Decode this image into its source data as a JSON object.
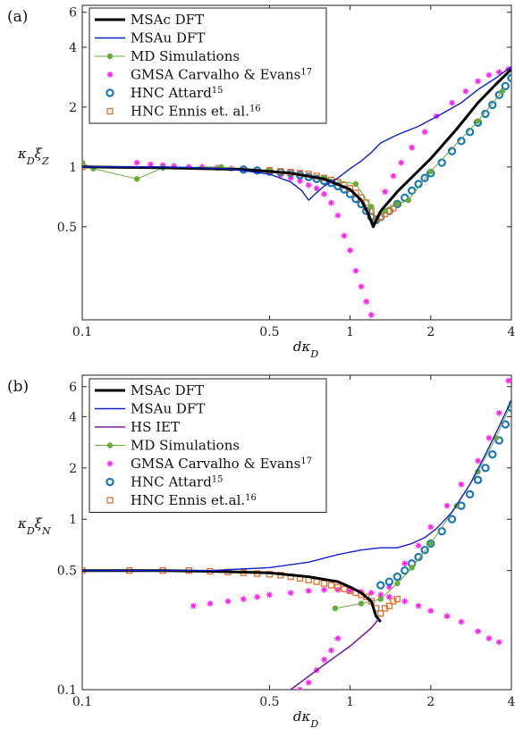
{
  "chart_data": [
    {
      "panel": "(a)",
      "type": "line",
      "xlabel": "dκ_D",
      "ylabel": "κ_D ξ_Z",
      "xscale": "log",
      "yscale": "log",
      "xlim": [
        0.1,
        4
      ],
      "ylim": [
        0.17,
        6.5
      ],
      "xticks": [
        0.1,
        0.5,
        1,
        2,
        4
      ],
      "yticks": [
        0.5,
        1,
        2,
        4,
        6
      ],
      "legend_position": "top-left",
      "series": [
        {
          "name": "MSAc DFT",
          "style": "line",
          "color": "#000000",
          "width": 3,
          "x": [
            0.1,
            0.2,
            0.4,
            0.6,
            0.8,
            1.0,
            1.1,
            1.17,
            1.2,
            1.22,
            1.3,
            1.5,
            2.0,
            2.5,
            3.0,
            3.5,
            4.0
          ],
          "y": [
            1.0,
            0.99,
            0.97,
            0.93,
            0.87,
            0.77,
            0.68,
            0.58,
            0.53,
            0.5,
            0.6,
            0.75,
            1.1,
            1.55,
            2.1,
            2.6,
            3.1
          ]
        },
        {
          "name": "MSAu DFT",
          "style": "line",
          "color": "#1020c8",
          "width": 1.4,
          "x": [
            0.1,
            0.2,
            0.35,
            0.5,
            0.6,
            0.66,
            0.7,
            0.74,
            0.8,
            0.9,
            1.0,
            1.1,
            1.2,
            1.3,
            1.5,
            1.8,
            2.2,
            2.6,
            3.0,
            3.5,
            4.0
          ],
          "y": [
            1.0,
            1.0,
            0.98,
            0.92,
            0.84,
            0.76,
            0.68,
            0.73,
            0.8,
            0.88,
            0.98,
            1.07,
            1.18,
            1.32,
            1.45,
            1.6,
            1.85,
            2.1,
            2.45,
            2.8,
            3.2
          ]
        },
        {
          "name": "MD Simulations",
          "style": "line-marker",
          "color": "#6aaa3a",
          "marker": "dot",
          "x": [
            0.1,
            0.11,
            0.16,
            0.2,
            0.33,
            0.5,
            0.8,
            1.05,
            1.2,
            1.25,
            1.35,
            1.5,
            1.65,
            2.0,
            3.0,
            3.7
          ],
          "y": [
            1.05,
            0.98,
            0.87,
            0.99,
            1.0,
            0.96,
            0.88,
            0.82,
            0.63,
            0.54,
            0.6,
            0.65,
            0.68,
            0.95,
            1.7,
            2.4
          ]
        },
        {
          "name": "GMSA Carvalho & Evans¹⁷",
          "style": "marker",
          "color": "#ff22ee",
          "marker": "asterisk",
          "x": [
            0.16,
            0.18,
            0.2,
            0.22,
            0.25,
            0.28,
            0.32,
            0.36,
            0.4,
            0.45,
            0.5,
            0.55,
            0.6,
            0.65,
            0.7,
            0.75,
            0.8,
            0.85,
            0.9,
            0.95,
            1.0,
            1.05,
            1.1,
            1.15,
            1.2,
            1.35,
            1.45,
            1.55,
            1.7,
            1.9,
            2.1,
            2.4,
            2.7,
            3.0,
            3.3,
            3.6,
            3.9
          ],
          "y": [
            1.05,
            1.03,
            1.02,
            1.01,
            1.0,
            1.0,
            0.99,
            0.98,
            0.97,
            0.95,
            0.93,
            0.91,
            0.88,
            0.85,
            0.81,
            0.78,
            0.73,
            0.66,
            0.57,
            0.45,
            0.38,
            0.3,
            0.25,
            0.21,
            0.18,
            0.75,
            0.9,
            1.05,
            1.25,
            1.5,
            1.8,
            2.1,
            2.4,
            2.7,
            2.9,
            3.0,
            3.1
          ]
        },
        {
          "name": "HNC Attard¹⁵",
          "style": "marker",
          "color": "#1a78b4",
          "marker": "circle",
          "x": [
            0.4,
            0.45,
            0.5,
            0.55,
            0.6,
            0.65,
            0.7,
            0.75,
            0.8,
            0.85,
            0.9,
            0.95,
            1.0,
            1.05,
            1.1,
            1.15,
            1.2,
            1.25,
            1.3,
            1.4,
            1.5,
            1.6,
            1.7,
            1.8,
            1.9,
            2.0,
            2.2,
            2.4,
            2.6,
            2.8,
            3.0,
            3.2,
            3.4,
            3.6,
            3.8,
            4.0
          ],
          "y": [
            0.97,
            0.96,
            0.95,
            0.94,
            0.93,
            0.91,
            0.89,
            0.87,
            0.85,
            0.83,
            0.8,
            0.77,
            0.73,
            0.69,
            0.65,
            0.6,
            0.56,
            0.54,
            0.56,
            0.6,
            0.65,
            0.7,
            0.76,
            0.82,
            0.88,
            0.93,
            1.05,
            1.2,
            1.35,
            1.5,
            1.67,
            1.85,
            2.05,
            2.3,
            2.55,
            2.8
          ]
        },
        {
          "name": "HNC Ennis et. al.¹⁶",
          "style": "marker",
          "color": "#e07030",
          "marker": "square",
          "x": [
            0.1,
            0.5,
            0.55,
            0.6,
            0.65,
            0.7,
            0.75,
            0.8,
            0.85,
            0.9,
            0.95,
            1.0,
            1.05,
            1.1,
            1.15,
            1.2,
            1.25,
            1.3,
            1.35,
            1.4,
            1.45
          ],
          "y": [
            1.0,
            0.96,
            0.95,
            0.94,
            0.93,
            0.92,
            0.9,
            0.88,
            0.86,
            0.84,
            0.81,
            0.78,
            0.74,
            0.7,
            0.66,
            0.6,
            0.55,
            0.56,
            0.58,
            0.6,
            0.62
          ]
        }
      ]
    },
    {
      "panel": "(b)",
      "type": "line",
      "xlabel": "dκ_D",
      "ylabel": "κ_D ξ_N",
      "xscale": "log",
      "yscale": "log",
      "xlim": [
        0.1,
        4
      ],
      "ylim": [
        0.1,
        7
      ],
      "xticks": [
        0.1,
        0.5,
        1,
        2,
        4
      ],
      "yticks": [
        0.1,
        0.5,
        1,
        2,
        4,
        6
      ],
      "legend_position": "top-left",
      "series": [
        {
          "name": "MSAc DFT",
          "style": "line",
          "color": "#000000",
          "width": 3,
          "x": [
            0.1,
            0.2,
            0.3,
            0.5,
            0.7,
            0.9,
            1.0,
            1.1,
            1.2,
            1.25,
            1.3
          ],
          "y": [
            0.5,
            0.5,
            0.495,
            0.485,
            0.46,
            0.43,
            0.4,
            0.37,
            0.33,
            0.27,
            0.25
          ]
        },
        {
          "name": "MSAu DFT",
          "style": "line",
          "color": "#1020c8",
          "width": 1.4,
          "x": [
            0.1,
            0.3,
            0.5,
            0.7,
            0.9,
            1.1,
            1.3,
            1.5,
            1.7,
            1.9,
            2.1,
            2.4,
            2.8,
            3.2,
            3.6,
            4.0
          ],
          "y": [
            0.5,
            0.5,
            0.52,
            0.56,
            0.62,
            0.66,
            0.68,
            0.68,
            0.72,
            0.78,
            0.88,
            1.1,
            1.6,
            2.4,
            3.5,
            5.0
          ]
        },
        {
          "name": "HS IET",
          "style": "line",
          "color": "#7a1fa0",
          "width": 1.6,
          "x": [
            0.6,
            0.8,
            1.0,
            1.2,
            1.28
          ],
          "y": [
            0.1,
            0.14,
            0.18,
            0.23,
            0.26
          ]
        },
        {
          "name": "MD Simulations",
          "style": "line-marker",
          "color": "#6aaa3a",
          "marker": "dot",
          "x": [
            0.88,
            1.1,
            1.3,
            1.5,
            1.7,
            2.0,
            2.5,
            3.0,
            3.5,
            4.0
          ],
          "y": [
            0.3,
            0.32,
            0.34,
            0.42,
            0.52,
            0.72,
            1.2,
            1.9,
            3.0,
            4.8
          ]
        },
        {
          "name": "GMSA Carvalho & Evans¹⁷",
          "style": "marker",
          "color": "#ff22ee",
          "marker": "asterisk",
          "x": [
            0.26,
            0.3,
            0.35,
            0.4,
            0.45,
            0.5,
            0.6,
            0.7,
            0.8,
            0.9,
            1.0,
            1.1,
            1.2,
            1.3,
            1.4,
            1.6,
            1.8,
            2.0,
            2.3,
            2.6,
            3.0,
            3.3,
            3.6,
            0.65,
            0.7,
            0.75,
            0.8,
            0.85,
            0.9,
            1.4,
            1.6,
            1.8,
            2.0,
            2.3,
            2.6,
            3.0,
            3.3,
            3.6,
            3.9
          ],
          "y": [
            0.31,
            0.32,
            0.33,
            0.34,
            0.35,
            0.36,
            0.37,
            0.38,
            0.385,
            0.385,
            0.38,
            0.375,
            0.37,
            0.36,
            0.35,
            0.33,
            0.31,
            0.29,
            0.27,
            0.25,
            0.22,
            0.2,
            0.19,
            0.1,
            0.11,
            0.13,
            0.15,
            0.17,
            0.2,
            0.4,
            0.55,
            0.7,
            0.9,
            1.2,
            1.6,
            2.2,
            3.0,
            4.2,
            6.5
          ]
        },
        {
          "name": "HNC Attard¹⁵",
          "style": "marker",
          "color": "#1a78b4",
          "marker": "circle",
          "x": [
            1.3,
            1.4,
            1.5,
            1.6,
            1.7,
            1.8,
            1.9,
            2.0,
            2.2,
            2.4,
            2.6,
            2.8,
            3.0,
            3.2,
            3.4,
            3.6,
            3.8,
            4.0
          ],
          "y": [
            0.41,
            0.43,
            0.46,
            0.5,
            0.55,
            0.6,
            0.66,
            0.72,
            0.85,
            1.0,
            1.2,
            1.4,
            1.7,
            2.0,
            2.4,
            2.9,
            3.6,
            4.5
          ]
        },
        {
          "name": "HNC Ennis et.al.¹⁶",
          "style": "marker",
          "color": "#e07030",
          "marker": "square",
          "x": [
            0.1,
            0.15,
            0.2,
            0.25,
            0.3,
            0.35,
            0.4,
            0.45,
            0.5,
            0.55,
            0.6,
            0.65,
            0.7,
            0.75,
            0.8,
            0.85,
            0.9,
            0.95,
            1.0,
            1.05,
            1.1,
            1.15,
            1.2,
            1.25,
            1.3,
            1.35,
            1.4,
            1.45,
            1.5
          ],
          "y": [
            0.5,
            0.5,
            0.5,
            0.5,
            0.495,
            0.49,
            0.485,
            0.48,
            0.475,
            0.47,
            0.46,
            0.45,
            0.44,
            0.43,
            0.42,
            0.41,
            0.4,
            0.39,
            0.38,
            0.37,
            0.36,
            0.35,
            0.33,
            0.3,
            0.28,
            0.3,
            0.31,
            0.33,
            0.34
          ]
        }
      ]
    }
  ]
}
